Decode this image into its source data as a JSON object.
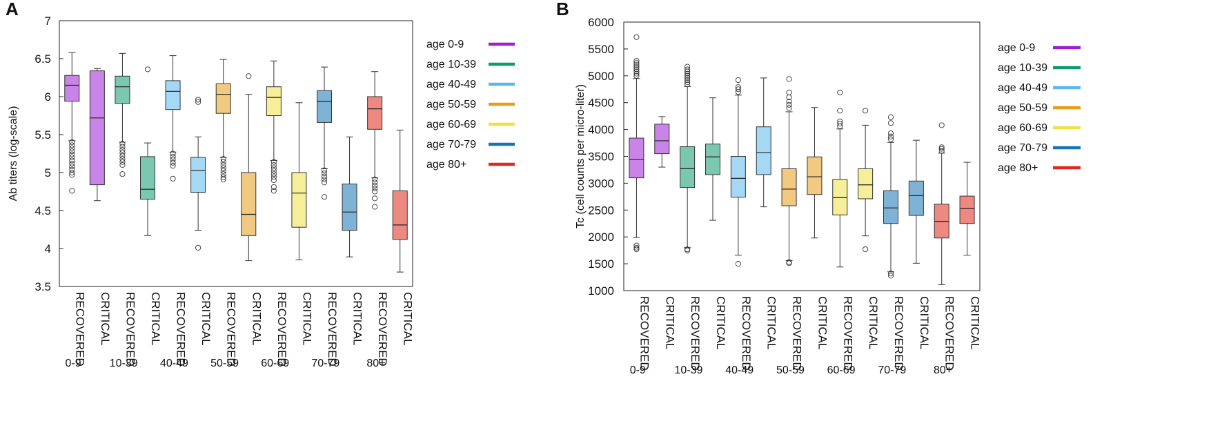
{
  "chart_data": [
    {
      "type": "boxplot",
      "panel_label": "A",
      "title": "",
      "xlabel": "",
      "ylabel": "Ab titers (log-scale)",
      "ylim": [
        3.5,
        7
      ],
      "yticks": [
        3.5,
        4,
        4.5,
        5,
        5.5,
        6,
        6.5,
        7
      ],
      "ytick_labels": [
        "3.5",
        "4",
        "4.5",
        "5",
        "5.5",
        "6",
        "6.5",
        "7"
      ],
      "categories": [
        "RECOVERED",
        "CRITICAL",
        "RECOVERED",
        "CRITICAL",
        "RECOVERED",
        "CRITICAL",
        "RECOVERED",
        "CRITICAL",
        "RECOVERED",
        "CRITICAL",
        "RECOVERED",
        "CRITICAL",
        "RECOVERED",
        "CRITICAL"
      ],
      "groups": [
        "0-9",
        "10-39",
        "40-49",
        "50-59",
        "60-69",
        "70-79",
        "80+"
      ],
      "legend": [
        {
          "label": "age 0-9",
          "color": "#9b1fd4"
        },
        {
          "label": "age 10-39",
          "color": "#0f9a6e"
        },
        {
          "label": "age 40-49",
          "color": "#5ab8ec"
        },
        {
          "label": "age 50-59",
          "color": "#e89c1a"
        },
        {
          "label": "age 60-69",
          "color": "#efe043"
        },
        {
          "label": "age 70-79",
          "color": "#1474b4"
        },
        {
          "label": "age 80+",
          "color": "#e0291c"
        }
      ],
      "boxes": [
        {
          "group": "0-9",
          "status": "RECOVERED",
          "whisker_low": 5.42,
          "q1": 5.94,
          "median": 6.15,
          "q3": 6.28,
          "whisker_high": 6.58,
          "outliers_low": [
            5.4,
            5.36,
            5.32,
            5.28,
            5.24,
            5.2,
            5.16,
            5.12,
            5.08,
            5.04,
            5.0,
            4.97,
            4.76
          ]
        },
        {
          "group": "0-9",
          "status": "CRITICAL",
          "whisker_low": 4.63,
          "q1": 4.84,
          "median": 5.72,
          "q3": 6.34,
          "whisker_high": 6.37,
          "outliers_low": []
        },
        {
          "group": "10-39",
          "status": "RECOVERED",
          "whisker_low": 5.4,
          "q1": 5.91,
          "median": 6.13,
          "q3": 6.27,
          "whisker_high": 6.57,
          "outliers_low": [
            5.38,
            5.34,
            5.3,
            5.26,
            5.22,
            5.18,
            5.14,
            5.1,
            4.98
          ]
        },
        {
          "group": "10-39",
          "status": "CRITICAL",
          "whisker_low": 4.17,
          "q1": 4.65,
          "median": 4.78,
          "q3": 5.21,
          "whisker_high": 5.39,
          "outliers_high": [
            6.36
          ]
        },
        {
          "group": "40-49",
          "status": "RECOVERED",
          "whisker_low": 5.27,
          "q1": 5.83,
          "median": 6.07,
          "q3": 6.21,
          "whisker_high": 6.54,
          "outliers_low": [
            5.25,
            5.21,
            5.17,
            5.13,
            5.09,
            4.92
          ]
        },
        {
          "group": "40-49",
          "status": "CRITICAL",
          "whisker_low": 4.24,
          "q1": 4.74,
          "median": 5.03,
          "q3": 5.2,
          "whisker_high": 5.47,
          "outliers_low": [
            4.01
          ],
          "outliers_high": [
            5.93,
            5.96
          ]
        },
        {
          "group": "50-59",
          "status": "RECOVERED",
          "whisker_low": 5.2,
          "q1": 5.78,
          "median": 6.03,
          "q3": 6.17,
          "whisker_high": 6.49,
          "outliers_low": [
            5.18,
            5.14,
            5.1,
            5.06,
            5.02,
            4.98,
            4.94,
            4.91
          ]
        },
        {
          "group": "50-59",
          "status": "CRITICAL",
          "whisker_low": 3.84,
          "q1": 4.17,
          "median": 4.45,
          "q3": 5.0,
          "whisker_high": 6.03,
          "outliers_high": [
            6.27
          ]
        },
        {
          "group": "60-69",
          "status": "RECOVERED",
          "whisker_low": 5.16,
          "q1": 5.75,
          "median": 5.99,
          "q3": 6.13,
          "whisker_high": 6.47,
          "outliers_low": [
            5.14,
            5.1,
            5.06,
            5.02,
            4.98,
            4.94,
            4.9,
            4.81,
            4.76
          ]
        },
        {
          "group": "60-69",
          "status": "CRITICAL",
          "whisker_low": 3.85,
          "q1": 4.28,
          "median": 4.73,
          "q3": 5.0,
          "whisker_high": 5.92,
          "outliers_high": []
        },
        {
          "group": "70-79",
          "status": "RECOVERED",
          "whisker_low": 5.05,
          "q1": 5.66,
          "median": 5.94,
          "q3": 6.08,
          "whisker_high": 6.39,
          "outliers_low": [
            5.03,
            4.99,
            4.95,
            4.91,
            4.87,
            4.68
          ]
        },
        {
          "group": "70-79",
          "status": "CRITICAL",
          "whisker_low": 3.89,
          "q1": 4.24,
          "median": 4.48,
          "q3": 4.85,
          "whisker_high": 5.47,
          "outliers_high": []
        },
        {
          "group": "80+",
          "status": "RECOVERED",
          "whisker_low": 4.93,
          "q1": 5.57,
          "median": 5.84,
          "q3": 6.0,
          "whisker_high": 6.33,
          "outliers_low": [
            4.91,
            4.87,
            4.83,
            4.79,
            4.75,
            4.66,
            4.55
          ]
        },
        {
          "group": "80+",
          "status": "CRITICAL",
          "whisker_low": 3.69,
          "q1": 4.12,
          "median": 4.31,
          "q3": 4.76,
          "whisker_high": 5.56,
          "outliers_high": []
        }
      ]
    },
    {
      "type": "boxplot",
      "panel_label": "B",
      "title": "",
      "xlabel": "",
      "ylabel": "Tc (cell counts per micro-liter)",
      "ylim": [
        1000,
        6000
      ],
      "yticks": [
        1000,
        1500,
        2000,
        2500,
        3000,
        3500,
        4000,
        4500,
        5000,
        5500,
        6000
      ],
      "ytick_labels": [
        "1000",
        "1500",
        "2000",
        "2500",
        "3000",
        "3500",
        "4000",
        "4500",
        "5000",
        "5500",
        "6000"
      ],
      "categories": [
        "RECOVERED",
        "CRITICAL",
        "RECOVERED",
        "CRITICAL",
        "RECOVERED",
        "CRITICAL",
        "RECOVERED",
        "CRITICAL",
        "RECOVERED",
        "CRITICAL",
        "RECOVERED",
        "CRITICAL",
        "RECOVERED",
        "CRITICAL"
      ],
      "groups": [
        "0-9",
        "10-39",
        "40-49",
        "50-59",
        "60-69",
        "70-79",
        "80+"
      ],
      "legend": [
        {
          "label": "age 0-9",
          "color": "#9b1fd4"
        },
        {
          "label": "age 10-39",
          "color": "#0f9a6e"
        },
        {
          "label": "age 40-49",
          "color": "#5ab8ec"
        },
        {
          "label": "age 50-59",
          "color": "#e89c1a"
        },
        {
          "label": "age 60-69",
          "color": "#efe043"
        },
        {
          "label": "age 70-79",
          "color": "#1474b4"
        },
        {
          "label": "age 80+",
          "color": "#e0291c"
        }
      ],
      "boxes": [
        {
          "group": "0-9",
          "status": "RECOVERED",
          "whisker_low": 1990,
          "q1": 3100,
          "median": 3440,
          "q3": 3840,
          "whisker_high": 4950,
          "outliers_low": [
            1840,
            1800,
            1770
          ],
          "outliers_high": [
            5000,
            5040,
            5080,
            5120,
            5160,
            5200,
            5240,
            5280,
            5720
          ]
        },
        {
          "group": "0-9",
          "status": "CRITICAL",
          "whisker_low": 3300,
          "q1": 3550,
          "median": 3790,
          "q3": 4100,
          "whisker_high": 4240,
          "outliers_high": []
        },
        {
          "group": "10-39",
          "status": "RECOVERED",
          "whisker_low": 1800,
          "q1": 2920,
          "median": 3270,
          "q3": 3680,
          "whisker_high": 4800,
          "outliers_low": [
            1770,
            1750
          ],
          "outliers_high": [
            4840,
            4880,
            4920,
            4960,
            5000,
            5040,
            5080,
            5120,
            5170
          ]
        },
        {
          "group": "10-39",
          "status": "CRITICAL",
          "whisker_low": 2310,
          "q1": 3160,
          "median": 3490,
          "q3": 3730,
          "whisker_high": 4590,
          "outliers_high": []
        },
        {
          "group": "40-49",
          "status": "RECOVERED",
          "whisker_low": 1660,
          "q1": 2740,
          "median": 3090,
          "q3": 3500,
          "whisker_high": 4640,
          "outliers_low": [
            1500
          ],
          "outliers_high": [
            4700,
            4750,
            4790,
            4920
          ]
        },
        {
          "group": "40-49",
          "status": "CRITICAL",
          "whisker_low": 2560,
          "q1": 3160,
          "median": 3570,
          "q3": 4050,
          "whisker_high": 4960,
          "outliers_high": []
        },
        {
          "group": "50-59",
          "status": "RECOVERED",
          "whisker_low": 1560,
          "q1": 2580,
          "median": 2890,
          "q3": 3270,
          "whisker_high": 4330,
          "outliers_low": [
            1530,
            1510
          ],
          "outliers_high": [
            4400,
            4460,
            4520,
            4600,
            4690,
            4940
          ]
        },
        {
          "group": "50-59",
          "status": "CRITICAL",
          "whisker_low": 1980,
          "q1": 2790,
          "median": 3120,
          "q3": 3490,
          "whisker_high": 4410,
          "outliers_high": []
        },
        {
          "group": "60-69",
          "status": "RECOVERED",
          "whisker_low": 1440,
          "q1": 2410,
          "median": 2730,
          "q3": 3070,
          "whisker_high": 4010,
          "outliers_high": [
            4060,
            4110,
            4150,
            4350,
            4690
          ]
        },
        {
          "group": "60-69",
          "status": "CRITICAL",
          "whisker_low": 2020,
          "q1": 2710,
          "median": 2970,
          "q3": 3270,
          "whisker_high": 4080,
          "outliers_low": [
            1770
          ],
          "outliers_high": [
            4350
          ]
        },
        {
          "group": "70-79",
          "status": "RECOVERED",
          "whisker_low": 1350,
          "q1": 2250,
          "median": 2540,
          "q3": 2860,
          "whisker_high": 3760,
          "outliers_low": [
            1320,
            1280
          ],
          "outliers_high": [
            3820,
            3870,
            3930,
            4120,
            4230
          ]
        },
        {
          "group": "70-79",
          "status": "CRITICAL",
          "whisker_low": 1510,
          "q1": 2400,
          "median": 2770,
          "q3": 3040,
          "whisker_high": 3800,
          "outliers_high": []
        },
        {
          "group": "80+",
          "status": "RECOVERED",
          "whisker_low": 1110,
          "q1": 1980,
          "median": 2290,
          "q3": 2610,
          "whisker_high": 3560,
          "outliers_high": [
            3600,
            3640,
            3670,
            4080
          ]
        },
        {
          "group": "80+",
          "status": "CRITICAL",
          "whisker_low": 1660,
          "q1": 2250,
          "median": 2530,
          "q3": 2760,
          "whisker_high": 3390,
          "outliers_high": []
        }
      ]
    }
  ]
}
